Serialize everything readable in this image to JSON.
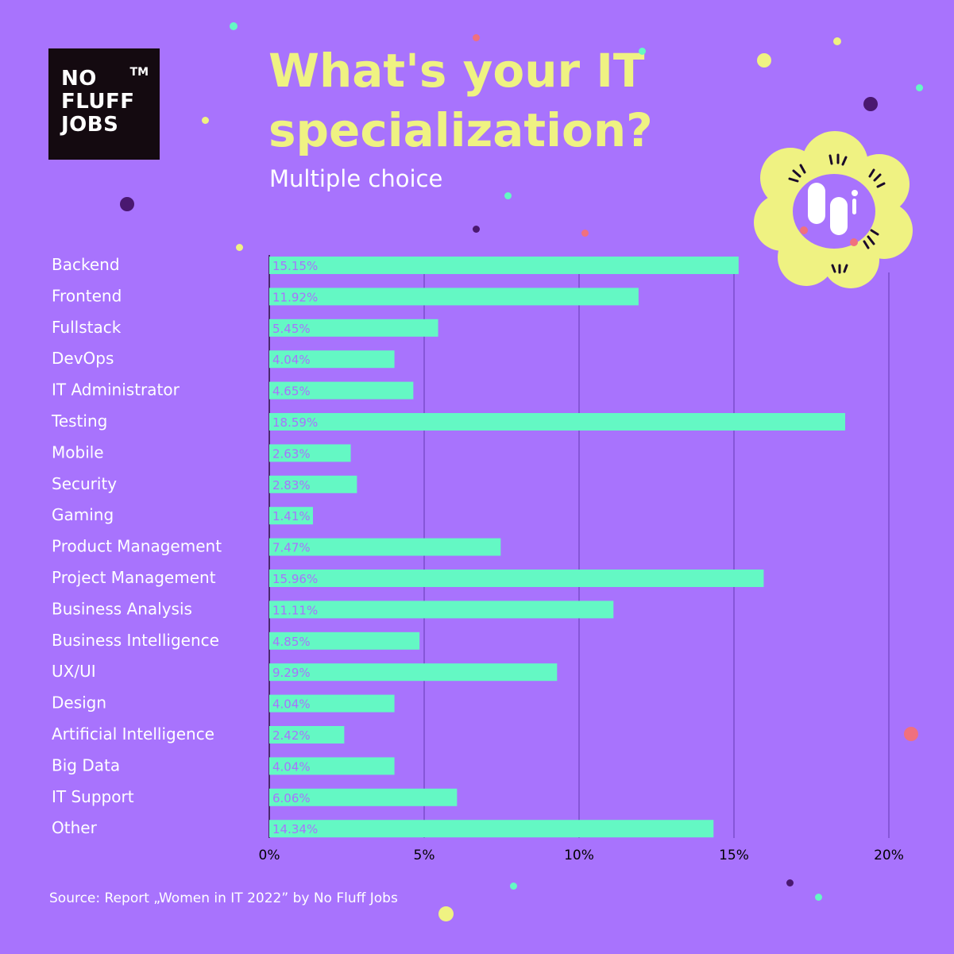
{
  "brand": {
    "logo_text": "NO FLUFF JOBS",
    "trademark": "TM"
  },
  "header": {
    "title": "What's your IT specialization?",
    "subtitle": "Multiple choice"
  },
  "footer": {
    "source": "Source: Report „Women in IT 2022” by No Fluff Jobs"
  },
  "colors": {
    "background": "#a873fd",
    "bar": "#64f8c4",
    "title": "#eff282",
    "label": "#ffffff"
  },
  "chart_data": {
    "type": "bar",
    "orientation": "horizontal",
    "categories": [
      "Backend",
      "Frontend",
      "Fullstack",
      "DevOps",
      "IT Administrator",
      "Testing",
      "Mobile",
      "Security",
      "Gaming",
      "Product Management",
      "Project Management",
      "Business Analysis",
      "Business Intelligence",
      "UX/UI",
      "Design",
      "Artificial Intelligence",
      "Big Data",
      "IT Support",
      "Other"
    ],
    "values": [
      15.15,
      11.92,
      5.45,
      4.04,
      4.65,
      18.59,
      2.63,
      2.83,
      1.41,
      7.47,
      15.96,
      11.11,
      4.85,
      9.29,
      4.04,
      2.42,
      4.04,
      6.06,
      14.34
    ],
    "value_labels": [
      "15.15%",
      "11.92%",
      "5.45%",
      "4.04%",
      "4.65%",
      "18.59%",
      "2.63%",
      "2.83%",
      "1.41%",
      "7.47%",
      "15.96%",
      "11.11%",
      "4.85%",
      "9.29%",
      "4.04%",
      "2.42%",
      "4.04%",
      "6.06%",
      "14.34%"
    ],
    "xlim": [
      0,
      20
    ],
    "x_ticks": [
      0,
      5,
      10,
      15,
      20
    ],
    "x_tick_labels": [
      "0%",
      "5%",
      "10%",
      "15%",
      "20%"
    ],
    "grid": true
  }
}
